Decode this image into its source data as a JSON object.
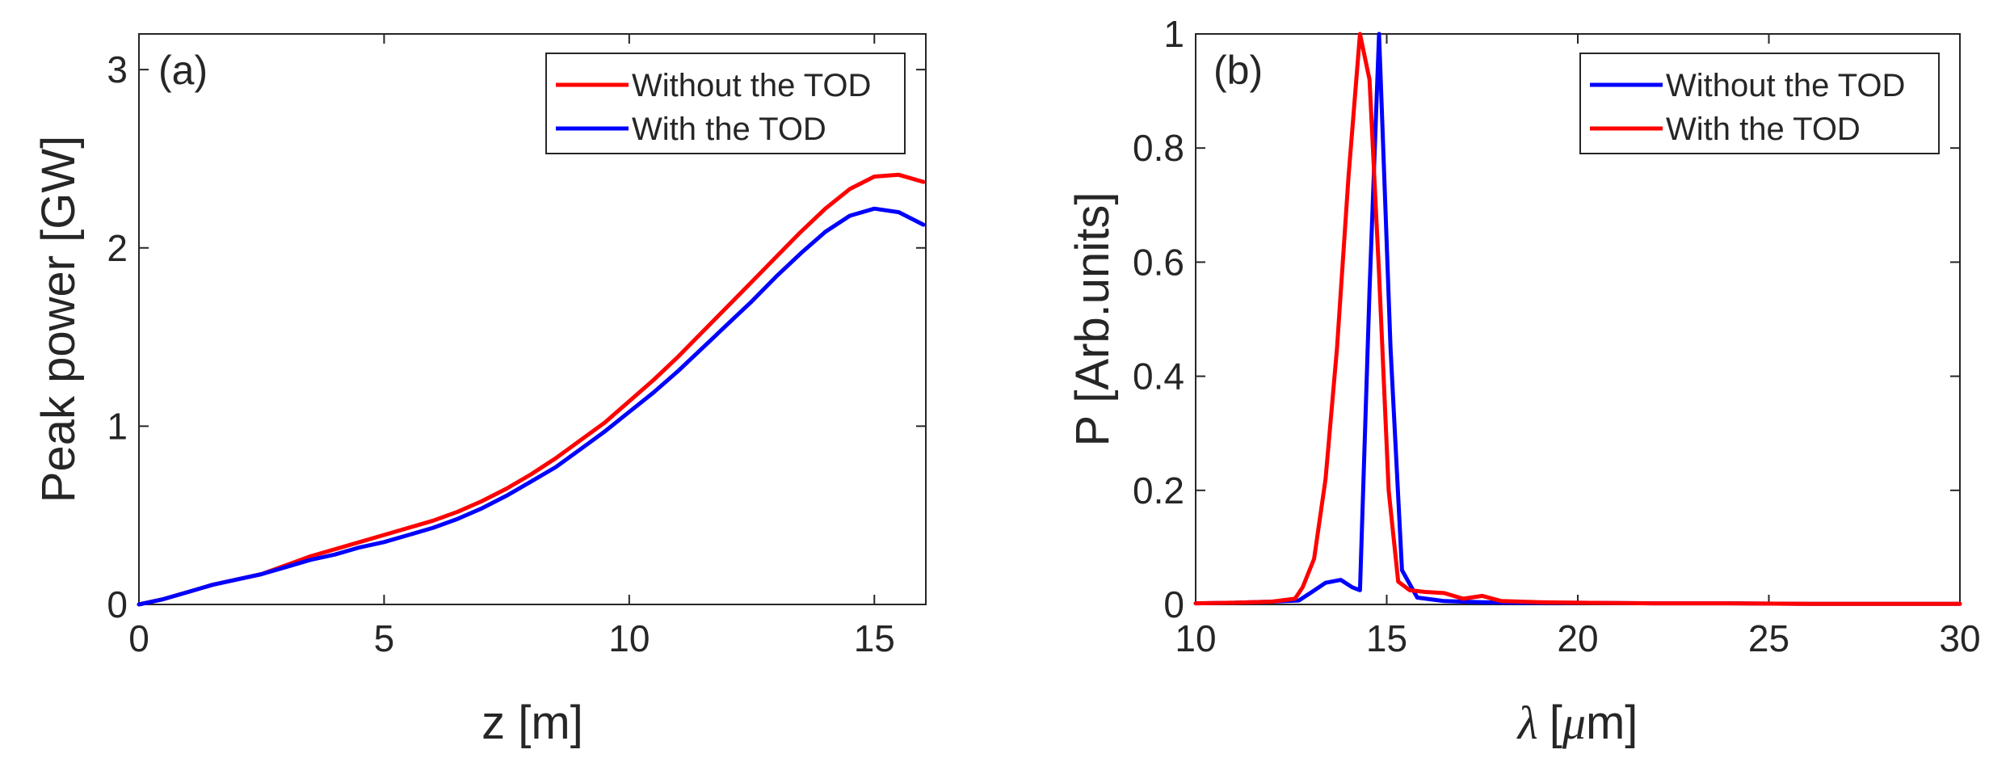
{
  "chart_data": [
    {
      "type": "line",
      "panel_label": "(a)",
      "xlabel": "z [m]",
      "ylabel": "Peak power [GW]",
      "xlim": [
        0,
        16.05
      ],
      "ylim": [
        0,
        3.2
      ],
      "xticks": [
        0,
        5,
        10,
        15
      ],
      "yticks": [
        0,
        1,
        2,
        3
      ],
      "legend_position": "top-right",
      "series": [
        {
          "name": "Without the TOD",
          "color": "#ff0000",
          "x": [
            0,
            0.5,
            1,
            1.5,
            2,
            2.5,
            3,
            3.5,
            4,
            4.5,
            5,
            5.5,
            6,
            6.5,
            7,
            7.5,
            8,
            8.5,
            9,
            9.5,
            10,
            10.5,
            11,
            11.5,
            12,
            12.5,
            13,
            13.5,
            14,
            14.5,
            15,
            15.5,
            16
          ],
          "y": [
            0,
            0.03,
            0.07,
            0.11,
            0.14,
            0.17,
            0.22,
            0.27,
            0.31,
            0.35,
            0.39,
            0.43,
            0.47,
            0.52,
            0.58,
            0.65,
            0.73,
            0.82,
            0.92,
            1.02,
            1.14,
            1.26,
            1.39,
            1.53,
            1.67,
            1.81,
            1.95,
            2.09,
            2.22,
            2.33,
            2.4,
            2.41,
            2.37
          ]
        },
        {
          "name": "With the TOD",
          "color": "#0000ff",
          "x": [
            0,
            0.5,
            1,
            1.5,
            2,
            2.5,
            3,
            3.5,
            4,
            4.5,
            5,
            5.5,
            6,
            6.5,
            7,
            7.5,
            8,
            8.5,
            9,
            9.5,
            10,
            10.5,
            11,
            11.5,
            12,
            12.5,
            13,
            13.5,
            14,
            14.5,
            15,
            15.5,
            16
          ],
          "y": [
            0,
            0.03,
            0.07,
            0.11,
            0.14,
            0.17,
            0.21,
            0.25,
            0.28,
            0.32,
            0.35,
            0.39,
            0.43,
            0.48,
            0.54,
            0.61,
            0.69,
            0.77,
            0.87,
            0.97,
            1.08,
            1.19,
            1.31,
            1.44,
            1.57,
            1.7,
            1.84,
            1.97,
            2.09,
            2.18,
            2.22,
            2.2,
            2.13
          ]
        }
      ]
    },
    {
      "type": "line",
      "panel_label": "(b)",
      "xlabel_symbol": "λ",
      "xlabel_unit_open": "[",
      "xlabel_unit_mu": "μ",
      "xlabel_unit_close": "m]",
      "ylabel": "P [Arb.units]",
      "xlim": [
        10,
        30
      ],
      "ylim": [
        0,
        1
      ],
      "xticks": [
        10,
        15,
        20,
        25,
        30
      ],
      "yticks": [
        0,
        0.2,
        0.4,
        0.6,
        0.8,
        1
      ],
      "legend_position": "top-right",
      "series": [
        {
          "name": "Without the TOD",
          "color": "#0000ff",
          "x": [
            10,
            11,
            12,
            12.7,
            13,
            13.4,
            13.8,
            14.1,
            14.3,
            14.55,
            14.8,
            15.1,
            15.4,
            15.8,
            16.5,
            17.5,
            18.5,
            20,
            22,
            24,
            26,
            28,
            30
          ],
          "y": [
            0.002,
            0.003,
            0.005,
            0.007,
            0.02,
            0.038,
            0.043,
            0.03,
            0.025,
            0.55,
            1.0,
            0.45,
            0.06,
            0.012,
            0.006,
            0.004,
            0.003,
            0.003,
            0.002,
            0.002,
            0.001,
            0.001,
            0.001
          ]
        },
        {
          "name": "With the TOD",
          "color": "#ff0000",
          "x": [
            10,
            11,
            12,
            12.6,
            12.8,
            13.1,
            13.4,
            13.7,
            14.0,
            14.3,
            14.55,
            14.8,
            15.05,
            15.3,
            15.6,
            16.0,
            16.5,
            17.0,
            17.5,
            18.0,
            19,
            20,
            22,
            24,
            26,
            28,
            30
          ],
          "y": [
            0.002,
            0.003,
            0.005,
            0.01,
            0.03,
            0.08,
            0.22,
            0.45,
            0.75,
            1.0,
            0.92,
            0.58,
            0.2,
            0.04,
            0.025,
            0.022,
            0.02,
            0.01,
            0.015,
            0.006,
            0.004,
            0.003,
            0.002,
            0.002,
            0.001,
            0.001,
            0.001
          ]
        }
      ]
    }
  ]
}
